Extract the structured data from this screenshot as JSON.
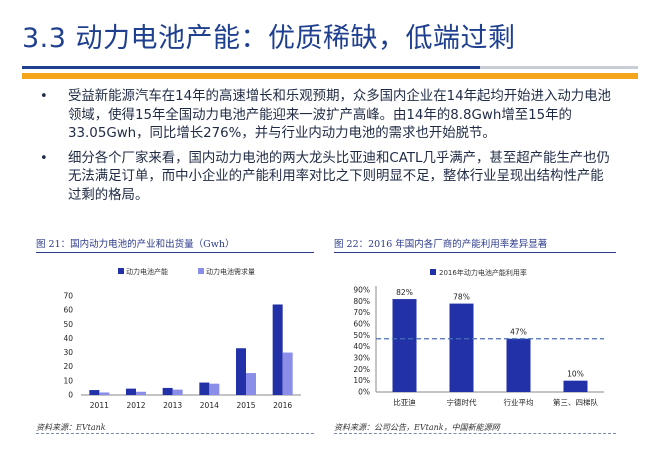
{
  "header": {
    "title": "3.3 动力电池产能：优质稀缺，低端过剩"
  },
  "bullets": [
    {
      "text": "受益新能源汽车在14年的高速增长和乐观预期，众多国内企业在14年起均开始进入动力电池领域，使得15年全国动力电池产能迎来一波扩产高峰。由14年的8.8Gwh增至15年的33.05Gwh，同比增长276%，并与行业内动力电池的需求也开始脱节。"
    },
    {
      "text": "细分各个厂家来看，国内动力电池的两大龙头比亚迪和CATL几乎满产，甚至超产能生产也仍无法满足订单，而中小企业的产能利用率对比之下则明显不足，整体行业呈现出结构性产能过剩的格局。"
    }
  ],
  "figure1": {
    "title": "图 21：国内动力电池的产业和出货量（Gwh）",
    "source": "资料来源：EVtank"
  },
  "figure2": {
    "title": "图 22：2016 年国内各厂商的产能利用率差异显著",
    "source": "资料来源：公司公告，EVtank，中国新能源网"
  },
  "colors": {
    "series1": "#2231a8",
    "series2": "#8a8ee8",
    "title": "#1f3f8f",
    "accent": "#f4a51c"
  },
  "chart_data": [
    {
      "type": "bar",
      "categories": [
        "2011",
        "2012",
        "2013",
        "2014",
        "2015",
        "2016"
      ],
      "series": [
        {
          "name": "动力电池产能",
          "values": [
            3.5,
            4.5,
            5,
            8.8,
            33.05,
            64
          ]
        },
        {
          "name": "动力电池需求量",
          "values": [
            1.8,
            2.3,
            3.8,
            8,
            15.5,
            30
          ]
        }
      ],
      "title": "",
      "xlabel": "",
      "ylabel": "",
      "ylim": [
        0,
        70
      ],
      "yticks": [
        "0",
        "10",
        "20",
        "30",
        "40",
        "50",
        "60",
        "70"
      ],
      "legend": "top"
    },
    {
      "type": "bar",
      "categories": [
        "比亚迪",
        "宁德时代",
        "行业平均",
        "第三、四梯队"
      ],
      "series": [
        {
          "name": "2016年动力电池产能利用率",
          "values": [
            82,
            78,
            47,
            10
          ]
        }
      ],
      "data_labels": [
        "82%",
        "78%",
        "47%",
        "10%"
      ],
      "reference_line": 47,
      "ylim": [
        0,
        90
      ],
      "yticks": [
        "0%",
        "10%",
        "20%",
        "30%",
        "40%",
        "50%",
        "60%",
        "70%",
        "80%",
        "90%"
      ],
      "legend": "top"
    }
  ]
}
